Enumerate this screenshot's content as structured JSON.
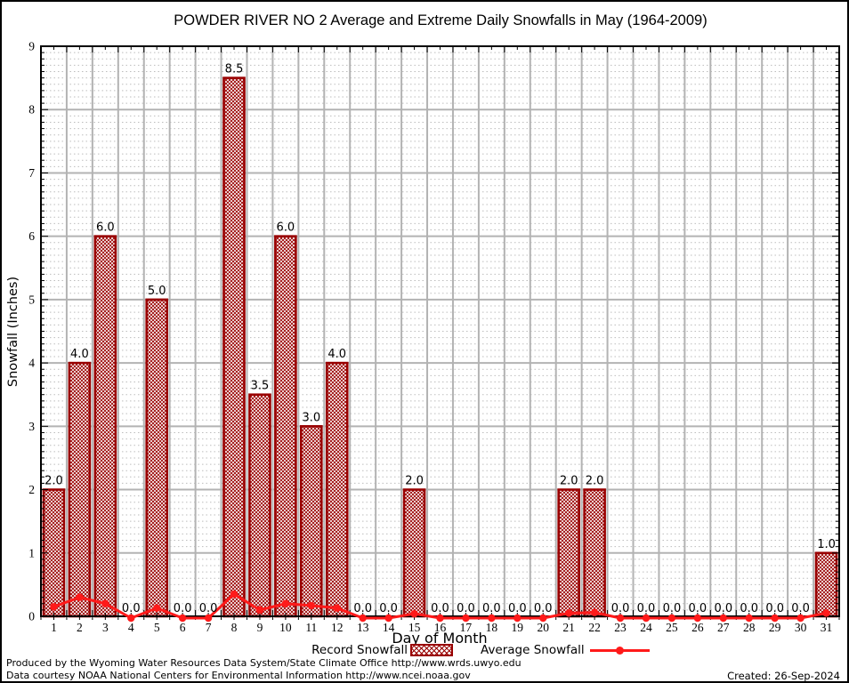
{
  "chart_data": {
    "type": "bar",
    "title": "POWDER RIVER NO 2 Average and Extreme Daily Snowfalls in May (1964-2009)",
    "xlabel": "Day of Month",
    "ylabel": "Snowfall (Inches)",
    "ylim": [
      0,
      9
    ],
    "y_ticks": [
      "0",
      "1",
      "2",
      "3",
      "4",
      "5",
      "6",
      "7",
      "8",
      "9"
    ],
    "y_minor_step": 0.1,
    "grid": "major solid gray at integers and day boundaries, minor dashed gray every 0.1",
    "legend_position": "bottom-center",
    "categories": [
      "1",
      "2",
      "3",
      "4",
      "5",
      "6",
      "7",
      "8",
      "9",
      "10",
      "11",
      "12",
      "13",
      "14",
      "15",
      "16",
      "17",
      "18",
      "19",
      "20",
      "21",
      "22",
      "23",
      "24",
      "25",
      "26",
      "27",
      "28",
      "29",
      "30",
      "31"
    ],
    "series": [
      {
        "name": "Record Snowfall",
        "type": "bar",
        "color": "#990000",
        "values": [
          2.0,
          4.0,
          6.0,
          0.0,
          5.0,
          0.0,
          0.0,
          8.5,
          3.5,
          6.0,
          3.0,
          4.0,
          0.0,
          0.0,
          2.0,
          0.0,
          0.0,
          0.0,
          0.0,
          0.0,
          2.0,
          2.0,
          0.0,
          0.0,
          0.0,
          0.0,
          0.0,
          0.0,
          0.0,
          0.0,
          1.0
        ],
        "labels": [
          "2.0",
          "4.0",
          "6.0",
          "0.0",
          "5.0",
          "0.0",
          "0.0",
          "8.5",
          "3.5",
          "6.0",
          "3.0",
          "4.0",
          "0.0",
          "0.0",
          "2.0",
          "0.0",
          "0.0",
          "0.0",
          "0.0",
          "0.0",
          "2.0",
          "2.0",
          "0.0",
          "0.0",
          "0.0",
          "0.0",
          "0.0",
          "0.0",
          "0.0",
          "0.0",
          "1.0"
        ]
      },
      {
        "name": "Average Snowfall",
        "type": "line",
        "color": "#ff1a1a",
        "values": [
          0.15,
          0.3,
          0.2,
          0.0,
          0.13,
          0.0,
          0.0,
          0.35,
          0.1,
          0.2,
          0.17,
          0.13,
          0.0,
          0.0,
          0.04,
          0.0,
          0.0,
          0.0,
          0.0,
          0.0,
          0.05,
          0.06,
          0.0,
          0.0,
          0.0,
          0.0,
          0.0,
          0.0,
          0.0,
          0.0,
          0.05
        ]
      }
    ]
  },
  "colors": {
    "bar_border": "#990000",
    "bar_hatch": "#990000",
    "average_line": "#ff1a1a",
    "grid_major": "#b3b3b3",
    "grid_minor": "#bdbdbd",
    "axis": "#000000"
  },
  "footer": {
    "line1": "Produced by the Wyoming Water Resources Data System/State Climate Office http://www.wrds.uwyo.edu",
    "line2": "Data courtesy NOAA National Centers for Environmental Information http://www.ncei.noaa.gov",
    "created": "Created: 26-Sep-2024"
  }
}
